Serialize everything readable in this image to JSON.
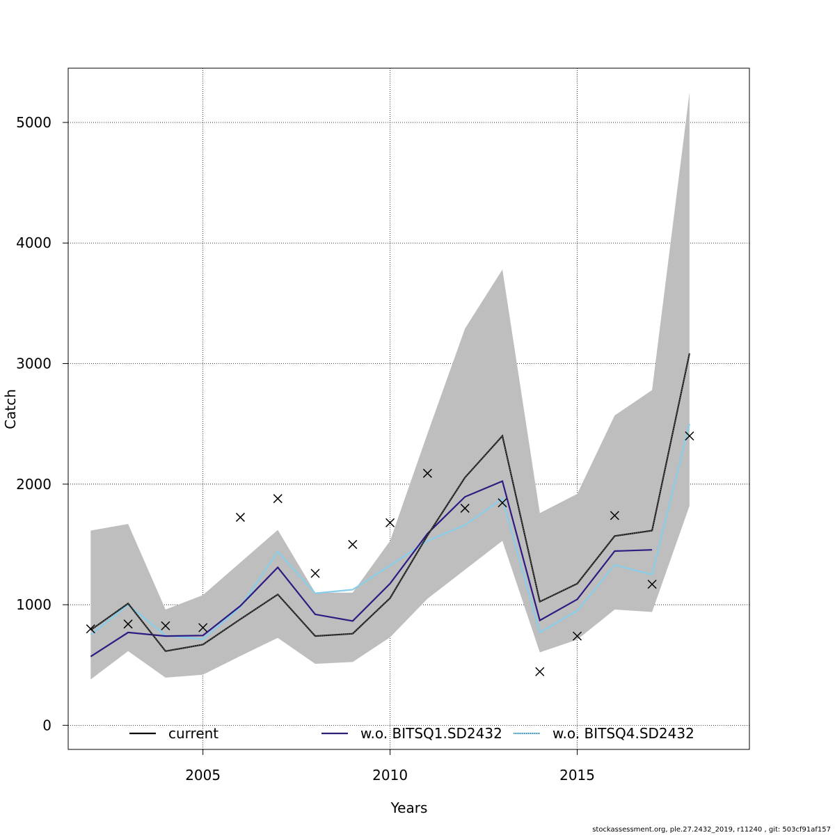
{
  "chart_data": {
    "type": "line",
    "title": "",
    "xlabel": "Years",
    "ylabel": "Catch",
    "xlim": [
      2001.4,
      2019.6
    ],
    "ylim": [
      -200,
      5450
    ],
    "xticks": [
      2005,
      2010,
      2015
    ],
    "yticks": [
      0,
      1000,
      2000,
      3000,
      4000,
      5000
    ],
    "grid": true,
    "legend_position": "bottom",
    "years": [
      2002,
      2003,
      2004,
      2005,
      2006,
      2007,
      2008,
      2009,
      2010,
      2011,
      2012,
      2013,
      2014,
      2015,
      2016,
      2017,
      2018
    ],
    "band": {
      "color": "#bebebe",
      "lower": [
        380,
        615,
        395,
        420,
        575,
        725,
        510,
        525,
        730,
        1050,
        1290,
        1530,
        605,
        710,
        960,
        940,
        1820
      ],
      "upper": [
        1615,
        1670,
        960,
        1080,
        1350,
        1620,
        1100,
        1100,
        1530,
        2420,
        3290,
        3780,
        1760,
        1920,
        2570,
        2780,
        5250
      ]
    },
    "series": [
      {
        "name": "current",
        "color": "#000000",
        "values": [
          790,
          1010,
          615,
          670,
          880,
          1085,
          740,
          760,
          1055,
          1575,
          2055,
          2400,
          1025,
          1175,
          1570,
          1615,
          3085
        ]
      },
      {
        "name": "w.o. BITSQ1.SD2432",
        "color": "#2d1a82",
        "values": [
          570,
          770,
          740,
          745,
          990,
          1310,
          920,
          865,
          1175,
          1590,
          1895,
          2025,
          870,
          1045,
          1445,
          1455,
          null
        ]
      },
      {
        "name": "w.o. BITSQ4.SD2432",
        "color": "#87ceeb",
        "values": [
          750,
          1000,
          745,
          715,
          980,
          1440,
          1095,
          1125,
          1325,
          1530,
          1660,
          1880,
          770,
          950,
          1330,
          1250,
          2500
        ]
      }
    ],
    "observed": {
      "marker": "x",
      "values": [
        800,
        840,
        825,
        810,
        1725,
        1880,
        1260,
        1500,
        1680,
        2090,
        1800,
        1845,
        445,
        740,
        1740,
        1170,
        2400
      ]
    }
  },
  "footer": "stockassessment.org, ple.27.2432_2019, r11240 , git: 503cf91af157"
}
